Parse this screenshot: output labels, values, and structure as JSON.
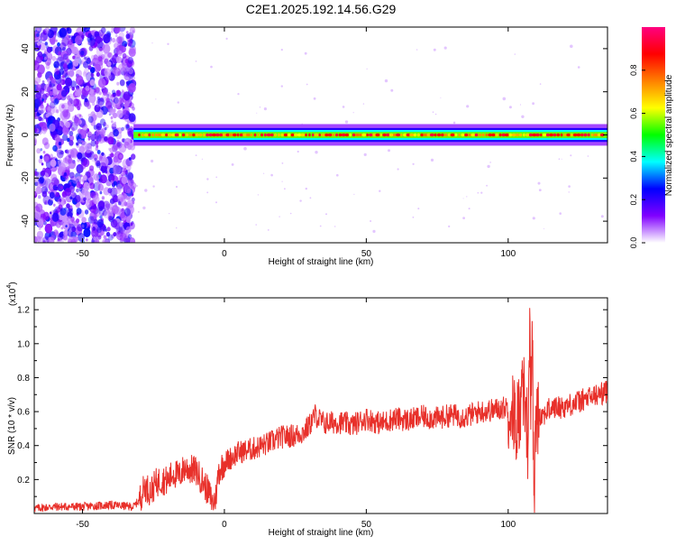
{
  "title": "C2E1.2025.192.14.56.G29",
  "chart_data": [
    {
      "type": "heatmap",
      "title": "C2E1.2025.192.14.56.G29",
      "xlabel": "Height of straight line (km)",
      "ylabel": "Frequency (Hz)",
      "xlim": [
        -67,
        135
      ],
      "ylim": [
        -50,
        50
      ],
      "x_ticks": [
        -50,
        0,
        50,
        100
      ],
      "y_ticks": [
        -40,
        -20,
        0,
        20,
        40
      ],
      "colorbar": {
        "label": "Normalized spectral amplitude",
        "range": [
          0,
          1
        ],
        "ticks": [
          "0.0",
          "0.2",
          "0.4",
          "0.6",
          "0.8"
        ],
        "colors": [
          "#ffffff",
          "#8000ff",
          "#0000ff",
          "#00ffff",
          "#00ff00",
          "#ffff00",
          "#ff8000",
          "#ff0000",
          "#ff0080"
        ]
      },
      "features": {
        "noise_region_x": [
          -67,
          -32
        ],
        "signal_band_center_hz": 0,
        "signal_band_x": [
          -32,
          135
        ]
      },
      "grid": false
    },
    {
      "type": "line",
      "xlabel": "Height of straight line (km)",
      "ylabel": "SNR (10 * v/v)",
      "y_multiplier": "(x10",
      "y_exponent": "4",
      "y_multiplier_close": ")",
      "xlim": [
        -67,
        135
      ],
      "ylim": [
        0,
        1.27
      ],
      "x_ticks": [
        -50,
        0,
        50,
        100
      ],
      "y_ticks": [
        "0.2",
        "0.4",
        "0.6",
        "0.8",
        "1.0",
        "1.2"
      ],
      "color": "#e8302a",
      "series": [
        {
          "x": [
            -67,
            -60,
            -50,
            -40,
            -32,
            -30,
            -28,
            -26,
            -24,
            -22,
            -20,
            -18,
            -16,
            -14,
            -12,
            -10,
            -8,
            -6,
            -4,
            -3,
            -2,
            0,
            5,
            10,
            15,
            20,
            25,
            28,
            30,
            32,
            35,
            40,
            45,
            50,
            55,
            60,
            65,
            70,
            75,
            80,
            85,
            90,
            95,
            100,
            103,
            105,
            106,
            107,
            107.5,
            108,
            108.5,
            109,
            110,
            112,
            115,
            120,
            125,
            130,
            135
          ],
          "y": [
            0.03,
            0.04,
            0.04,
            0.05,
            0.04,
            0.08,
            0.16,
            0.13,
            0.18,
            0.2,
            0.19,
            0.24,
            0.22,
            0.27,
            0.26,
            0.25,
            0.2,
            0.14,
            0.06,
            0.1,
            0.25,
            0.3,
            0.36,
            0.38,
            0.41,
            0.45,
            0.46,
            0.48,
            0.52,
            0.58,
            0.53,
            0.54,
            0.52,
            0.56,
            0.53,
            0.56,
            0.55,
            0.57,
            0.56,
            0.58,
            0.57,
            0.6,
            0.61,
            0.63,
            0.55,
            0.66,
            0.72,
            0.4,
            1.1,
            0.62,
            1.25,
            0.05,
            0.6,
            0.58,
            0.62,
            0.63,
            0.66,
            0.69,
            0.72
          ]
        }
      ],
      "grid": false
    }
  ]
}
